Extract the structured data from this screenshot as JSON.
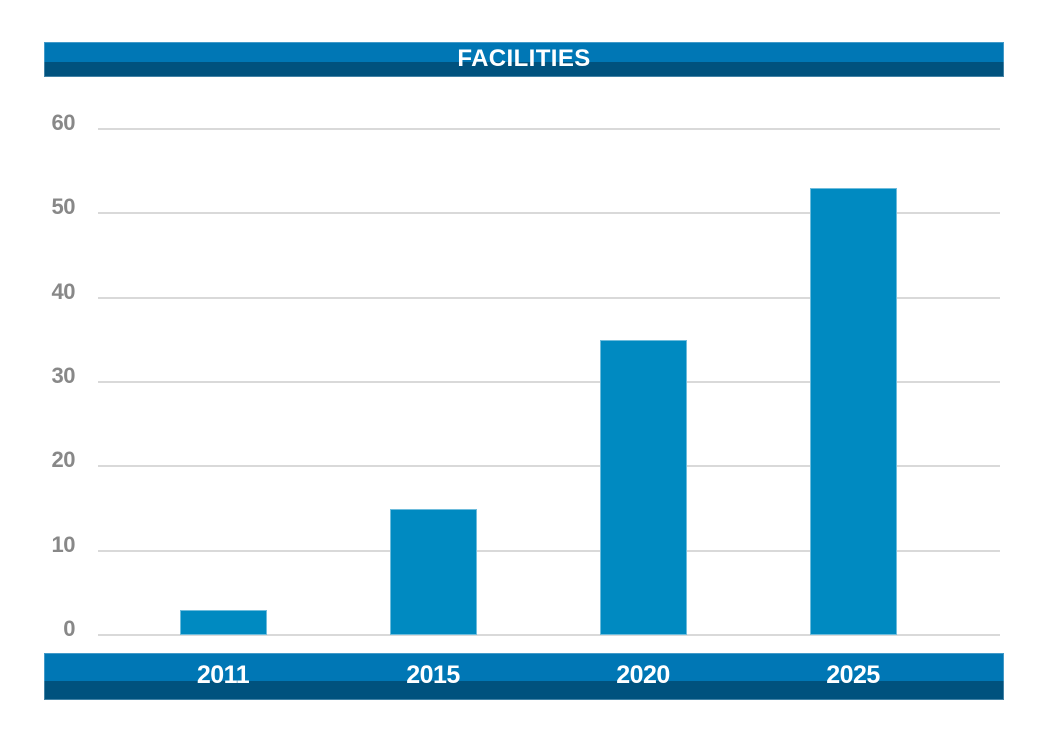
{
  "header": {
    "title": "FACILITIES"
  },
  "colors": {
    "band_light": "#0077b5",
    "band_dark": "#00527e",
    "bar": "#008ac1",
    "grid": "#d9d9d9",
    "axis_label": "#888888",
    "title_text": "#ffffff",
    "background": "#ffffff"
  },
  "chart_data": {
    "type": "bar",
    "title": "FACILITIES",
    "categories": [
      "2011",
      "2015",
      "2020",
      "2025"
    ],
    "values": [
      3,
      15,
      35,
      53
    ],
    "y_ticks": [
      0,
      10,
      20,
      30,
      40,
      50,
      60
    ],
    "ylim": [
      0,
      60
    ],
    "grid": true,
    "legend": false,
    "xlabel": "",
    "ylabel": ""
  }
}
